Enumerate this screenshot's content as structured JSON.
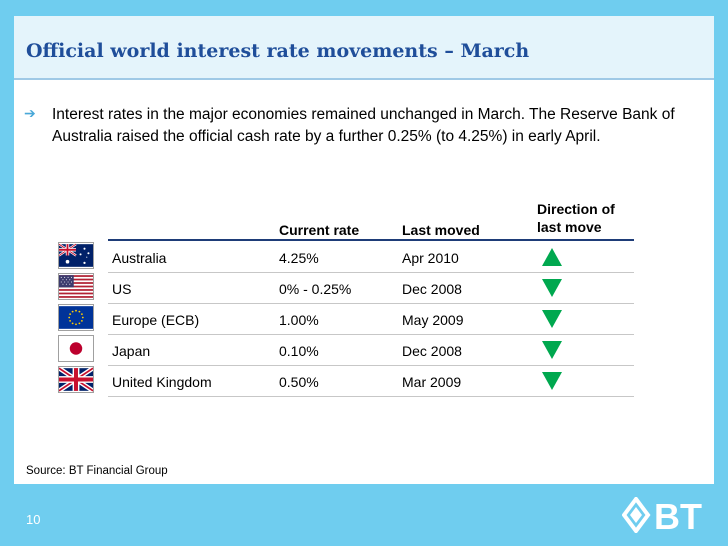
{
  "slide": {
    "title": "Official world interest rate movements – March",
    "bullet": "Interest rates in the major economies remained unchanged in March. The Reserve Bank of Australia raised the official cash rate by a further 0.25% (to 4.25%) in early April.",
    "source": "Source: BT Financial Group",
    "page_number": "10"
  },
  "table": {
    "headers": {
      "current_rate": "Current rate",
      "last_moved": "Last moved",
      "direction_line1": "Direction of",
      "direction_line2": "last move"
    },
    "rows": [
      {
        "country": "Australia",
        "flag": "australia-flag-icon",
        "rate": "4.25%",
        "last_moved": "Apr 2010",
        "direction": "up"
      },
      {
        "country": "US",
        "flag": "us-flag-icon",
        "rate": "0% - 0.25%",
        "last_moved": "Dec 2008",
        "direction": "down"
      },
      {
        "country": "Europe (ECB)",
        "flag": "eu-flag-icon",
        "rate": "1.00%",
        "last_moved": "May 2009",
        "direction": "down"
      },
      {
        "country": "Japan",
        "flag": "japan-flag-icon",
        "rate": "0.10%",
        "last_moved": "Dec 2008",
        "direction": "down"
      },
      {
        "country": "United Kingdom",
        "flag": "uk-flag-icon",
        "rate": "0.50%",
        "last_moved": "Mar 2009",
        "direction": "down"
      }
    ]
  },
  "colors": {
    "frame": "#6fcdef",
    "title": "#1f4e9a",
    "arrow": "#00a84f",
    "logo": "#ffffff"
  },
  "logo": {
    "text": "BT"
  }
}
